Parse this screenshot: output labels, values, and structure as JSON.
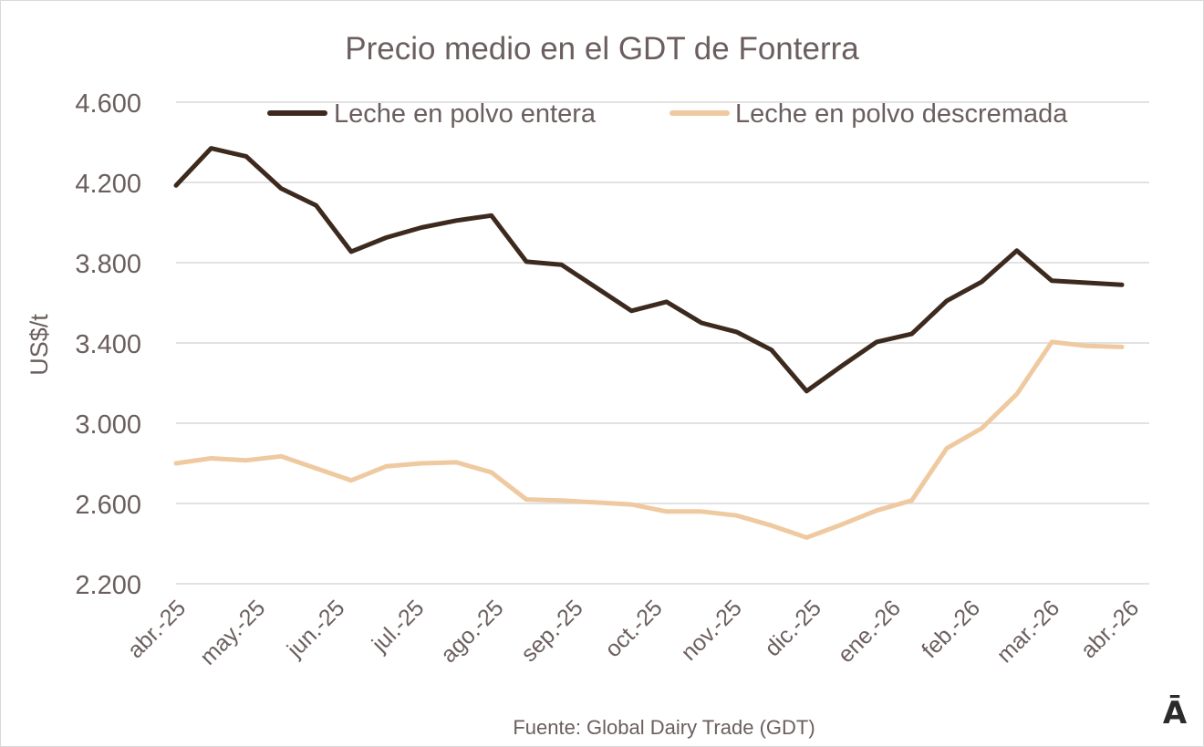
{
  "chart_data": {
    "type": "line",
    "title": "Precio medio en el GDT de Fonterra",
    "ylabel": "US$/t",
    "xlabel": "",
    "ylim": [
      2200,
      4600
    ],
    "yticks": [
      4600,
      4200,
      3800,
      3400,
      3000,
      2600,
      2200
    ],
    "ytick_labels": [
      "4.600",
      "4.200",
      "3.800",
      "3.400",
      "3.000",
      "2.600",
      "2.200"
    ],
    "xtick_labels": [
      "abr.-25",
      "may.-25",
      "jun.-25",
      "jul.-25",
      "ago.-25",
      "sep.-25",
      "oct.-25",
      "nov.-25",
      "dic.-25",
      "ene.-26",
      "feb.-26",
      "mar.-26",
      "abr.-26"
    ],
    "legend_position": "top",
    "grid": true,
    "series": [
      {
        "name": "Leche en polvo entera",
        "color": "#3d2a1e",
        "values": [
          4185,
          4370,
          4330,
          4170,
          4085,
          3855,
          3925,
          3975,
          4010,
          4035,
          3805,
          3790,
          3675,
          3560,
          3605,
          3500,
          3455,
          3365,
          3160,
          3285,
          3405,
          3445,
          3610,
          3705,
          3860,
          3710,
          3700,
          3690
        ]
      },
      {
        "name": "Leche en polvo descremada",
        "color": "#efc9a0",
        "values": [
          2800,
          2825,
          2815,
          2835,
          2775,
          2715,
          2785,
          2800,
          2805,
          2755,
          2620,
          2615,
          2605,
          2595,
          2560,
          2560,
          2540,
          2490,
          2430,
          2495,
          2565,
          2615,
          2875,
          2975,
          3145,
          3405,
          3385,
          3380
        ]
      }
    ]
  },
  "source": "Fuente: Global Dairy Trade (GDT)",
  "logo_text": "Ā"
}
